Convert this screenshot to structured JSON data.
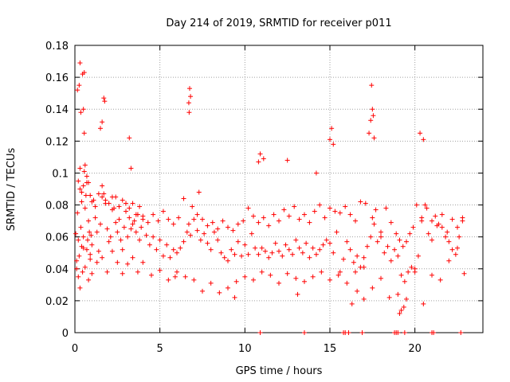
{
  "chart_data": {
    "type": "scatter",
    "title": "Day 214 of 2019, SRMTID for receiver p011",
    "xlabel": "GPS time / hours",
    "ylabel": "SRMTID / TECUs",
    "xlim": [
      0,
      24
    ],
    "ylim": [
      0,
      0.18
    ],
    "x_ticks": [
      0,
      5,
      10,
      15,
      20
    ],
    "x_tick_labels": [
      "0",
      "5",
      "10",
      "15",
      "20"
    ],
    "y_ticks": [
      0,
      0.02,
      0.04,
      0.06,
      0.08,
      0.1,
      0.12,
      0.14,
      0.16,
      0.18
    ],
    "y_tick_labels": [
      "0",
      "0.02",
      "0.04",
      "0.06",
      "0.08",
      "0.1",
      "0.12",
      "0.14",
      "0.16",
      "0.18"
    ],
    "grid": true,
    "marker": "+",
    "color": "#ff0000",
    "series": [
      {
        "name": "SRMTID",
        "x": [
          0.05,
          0.1,
          0.15,
          0.2,
          0.25,
          0.3,
          0.35,
          0.4,
          0.45,
          0.5,
          0.55,
          0.6,
          0.65,
          0.7,
          0.75,
          0.8,
          0.85,
          0.9,
          0.95,
          1.0,
          1.1,
          1.2,
          1.3,
          1.4,
          1.5,
          1.6,
          1.7,
          1.8,
          1.9,
          2.0,
          2.1,
          2.2,
          2.3,
          2.4,
          2.5,
          2.6,
          2.7,
          2.8,
          2.9,
          3.0,
          3.1,
          3.2,
          3.3,
          3.4,
          3.5,
          3.6,
          3.7,
          3.8,
          3.9,
          4.0,
          4.2,
          4.4,
          4.6,
          4.8,
          5.0,
          5.2,
          5.4,
          5.6,
          5.8,
          6.0,
          6.2,
          6.4,
          6.6,
          6.7,
          6.8,
          7.0,
          7.2,
          7.4,
          7.6,
          7.8,
          8.0,
          8.2,
          8.4,
          8.6,
          8.8,
          9.0,
          9.2,
          9.4,
          9.6,
          9.8,
          10.0,
          10.2,
          10.4,
          10.6,
          10.8,
          11.0,
          11.2,
          11.4,
          11.6,
          11.8,
          12.0,
          12.2,
          12.4,
          12.6,
          12.8,
          13.0,
          13.2,
          13.4,
          13.6,
          13.8,
          14.0,
          14.2,
          14.4,
          14.6,
          14.8,
          15.0,
          15.2,
          15.4,
          15.6,
          15.8,
          16.0,
          16.2,
          16.4,
          16.6,
          16.8,
          17.0,
          17.2,
          17.4,
          17.5,
          17.6,
          17.8,
          18.0,
          18.2,
          18.4,
          18.6,
          18.8,
          19.0,
          19.2,
          19.4,
          19.6,
          19.8,
          20.0,
          20.2,
          20.4,
          20.6,
          20.8,
          21.0,
          21.2,
          21.4,
          21.6,
          21.8,
          22.0,
          22.2,
          22.4,
          22.6,
          22.8,
          0.1,
          0.2,
          0.3,
          0.4,
          0.5,
          0.6,
          0.7,
          0.8,
          0.9,
          1.0,
          1.3,
          1.6,
          1.9,
          2.2,
          2.5,
          2.8,
          3.1,
          3.4,
          3.7,
          4.0,
          4.5,
          5.0,
          5.5,
          6.0,
          6.5,
          7.0,
          7.5,
          8.0,
          8.5,
          9.0,
          9.5,
          10.0,
          10.5,
          11.0,
          11.5,
          12.0,
          12.5,
          13.0,
          13.5,
          14.0,
          14.5,
          15.0,
          15.5,
          16.0,
          16.5,
          17.0,
          17.5,
          18.0,
          18.5,
          19.0,
          19.5,
          20.0,
          20.5,
          21.0,
          21.5,
          22.0,
          22.5,
          22.9,
          0.3,
          0.45,
          0.55,
          1.7,
          1.75,
          6.75,
          6.8,
          15.1,
          15.2,
          17.45,
          17.5,
          17.55,
          20.5,
          10.9,
          11.1,
          0.15,
          0.25,
          0.35,
          0.5,
          1.5,
          1.6,
          3.2,
          6.7,
          6.72,
          7.3,
          15.0,
          17.3,
          17.4,
          17.6,
          20.3,
          10.8,
          12.5,
          3.3,
          14.2,
          0.2,
          0.3,
          0.4,
          0.5,
          0.6,
          0.7,
          0.8,
          0.9,
          1.0,
          1.2,
          1.4,
          1.6,
          1.8,
          2.0,
          2.2,
          2.4,
          2.6,
          2.8,
          3.0,
          3.2,
          3.4,
          3.6,
          3.8,
          4.0,
          4.3,
          4.6,
          4.9,
          5.2,
          5.5,
          5.8,
          6.1,
          6.4,
          6.9,
          7.2,
          7.5,
          7.8,
          8.1,
          8.4,
          8.7,
          9.0,
          9.3,
          9.6,
          9.9,
          10.2,
          10.5,
          10.8,
          11.1,
          11.4,
          11.7,
          12.0,
          12.3,
          12.6,
          12.9,
          13.2,
          13.5,
          13.8,
          14.1,
          14.4,
          14.7,
          15.0,
          15.3,
          15.6,
          15.9,
          16.2,
          16.5,
          16.8,
          17.1,
          17.7,
          18.0,
          18.3,
          18.6,
          18.9,
          19.1,
          19.3,
          19.5,
          19.7,
          19.9,
          20.1,
          20.4,
          20.7,
          21.0,
          21.3,
          21.6,
          21.9,
          22.2,
          22.5,
          22.8,
          5.9,
          9.4,
          13.1,
          16.3,
          19.2,
          19.35,
          19.1,
          16.6,
          17.0,
          0.55,
          18.8,
          18.9,
          19.0,
          21.0,
          21.1,
          22.7,
          10.9,
          13.5,
          15.8,
          15.9,
          16.9,
          16.1,
          19.4
        ],
        "y": [
          0.062,
          0.045,
          0.075,
          0.058,
          0.048,
          0.09,
          0.066,
          0.082,
          0.038,
          0.053,
          0.101,
          0.078,
          0.086,
          0.094,
          0.058,
          0.07,
          0.063,
          0.049,
          0.061,
          0.055,
          0.083,
          0.072,
          0.063,
          0.051,
          0.068,
          0.092,
          0.087,
          0.081,
          0.065,
          0.057,
          0.06,
          0.085,
          0.078,
          0.069,
          0.063,
          0.071,
          0.058,
          0.052,
          0.066,
          0.081,
          0.06,
          0.072,
          0.065,
          0.068,
          0.07,
          0.063,
          0.074,
          0.058,
          0.066,
          0.071,
          0.061,
          0.055,
          0.06,
          0.052,
          0.058,
          0.048,
          0.055,
          0.047,
          0.052,
          0.05,
          0.053,
          0.057,
          0.063,
          0.068,
          0.061,
          0.071,
          0.064,
          0.058,
          0.062,
          0.056,
          0.052,
          0.063,
          0.058,
          0.05,
          0.047,
          0.045,
          0.052,
          0.049,
          0.057,
          0.048,
          0.055,
          0.049,
          0.062,
          0.053,
          0.049,
          0.053,
          0.051,
          0.047,
          0.05,
          0.056,
          0.051,
          0.048,
          0.055,
          0.052,
          0.049,
          0.058,
          0.053,
          0.05,
          0.056,
          0.047,
          0.053,
          0.049,
          0.052,
          0.055,
          0.058,
          0.056,
          0.05,
          0.063,
          0.038,
          0.046,
          0.057,
          0.052,
          0.044,
          0.048,
          0.041,
          0.047,
          0.054,
          0.06,
          0.072,
          0.068,
          0.057,
          0.063,
          0.05,
          0.054,
          0.045,
          0.052,
          0.048,
          0.036,
          0.032,
          0.038,
          0.041,
          0.04,
          0.048,
          0.07,
          0.08,
          0.062,
          0.058,
          0.073,
          0.068,
          0.066,
          0.06,
          0.057,
          0.052,
          0.049,
          0.06,
          0.072,
          0.04,
          0.035,
          0.028,
          0.054,
          0.06,
          0.041,
          0.052,
          0.033,
          0.046,
          0.037,
          0.044,
          0.047,
          0.038,
          0.051,
          0.044,
          0.037,
          0.043,
          0.047,
          0.038,
          0.044,
          0.036,
          0.039,
          0.033,
          0.038,
          0.035,
          0.033,
          0.026,
          0.031,
          0.025,
          0.028,
          0.032,
          0.035,
          0.033,
          0.038,
          0.036,
          0.031,
          0.037,
          0.034,
          0.032,
          0.035,
          0.038,
          0.033,
          0.036,
          0.031,
          0.038,
          0.041,
          0.028,
          0.034,
          0.022,
          0.024,
          0.021,
          0.038,
          0.018,
          0.036,
          0.033,
          0.045,
          0.053,
          0.037,
          0.169,
          0.162,
          0.163,
          0.147,
          0.145,
          0.153,
          0.148,
          0.128,
          0.118,
          0.155,
          0.14,
          0.136,
          0.121,
          0.112,
          0.109,
          0.152,
          0.155,
          0.138,
          0.14,
          0.128,
          0.132,
          0.122,
          0.144,
          0.138,
          0.088,
          0.121,
          0.125,
          0.133,
          0.122,
          0.125,
          0.107,
          0.108,
          0.103,
          0.1,
          0.095,
          0.103,
          0.088,
          0.092,
          0.105,
          0.098,
          0.094,
          0.086,
          0.082,
          0.079,
          0.087,
          0.085,
          0.083,
          0.081,
          0.077,
          0.085,
          0.079,
          0.083,
          0.076,
          0.078,
          0.081,
          0.074,
          0.079,
          0.073,
          0.069,
          0.074,
          0.07,
          0.076,
          0.071,
          0.068,
          0.072,
          0.084,
          0.079,
          0.074,
          0.071,
          0.067,
          0.069,
          0.065,
          0.07,
          0.066,
          0.064,
          0.068,
          0.07,
          0.078,
          0.073,
          0.069,
          0.072,
          0.067,
          0.074,
          0.07,
          0.077,
          0.073,
          0.079,
          0.071,
          0.074,
          0.069,
          0.076,
          0.08,
          0.072,
          0.078,
          0.076,
          0.075,
          0.079,
          0.074,
          0.07,
          0.082,
          0.081,
          0.077,
          0.06,
          0.078,
          0.069,
          0.062,
          0.058,
          0.054,
          0.057,
          0.062,
          0.066,
          0.08,
          0.072,
          0.078,
          0.07,
          0.067,
          0.074,
          0.063,
          0.071,
          0.066,
          0.07,
          0.035,
          0.022,
          0.024,
          0.018,
          0.014,
          0.016,
          0.012,
          0.026,
          0.021,
          0.125,
          0.0,
          0.0,
          0.0,
          0.0,
          0.0,
          0.0,
          0.0,
          0.0,
          0.0,
          0.0,
          0.0,
          0.0,
          0.0
        ]
      }
    ]
  }
}
